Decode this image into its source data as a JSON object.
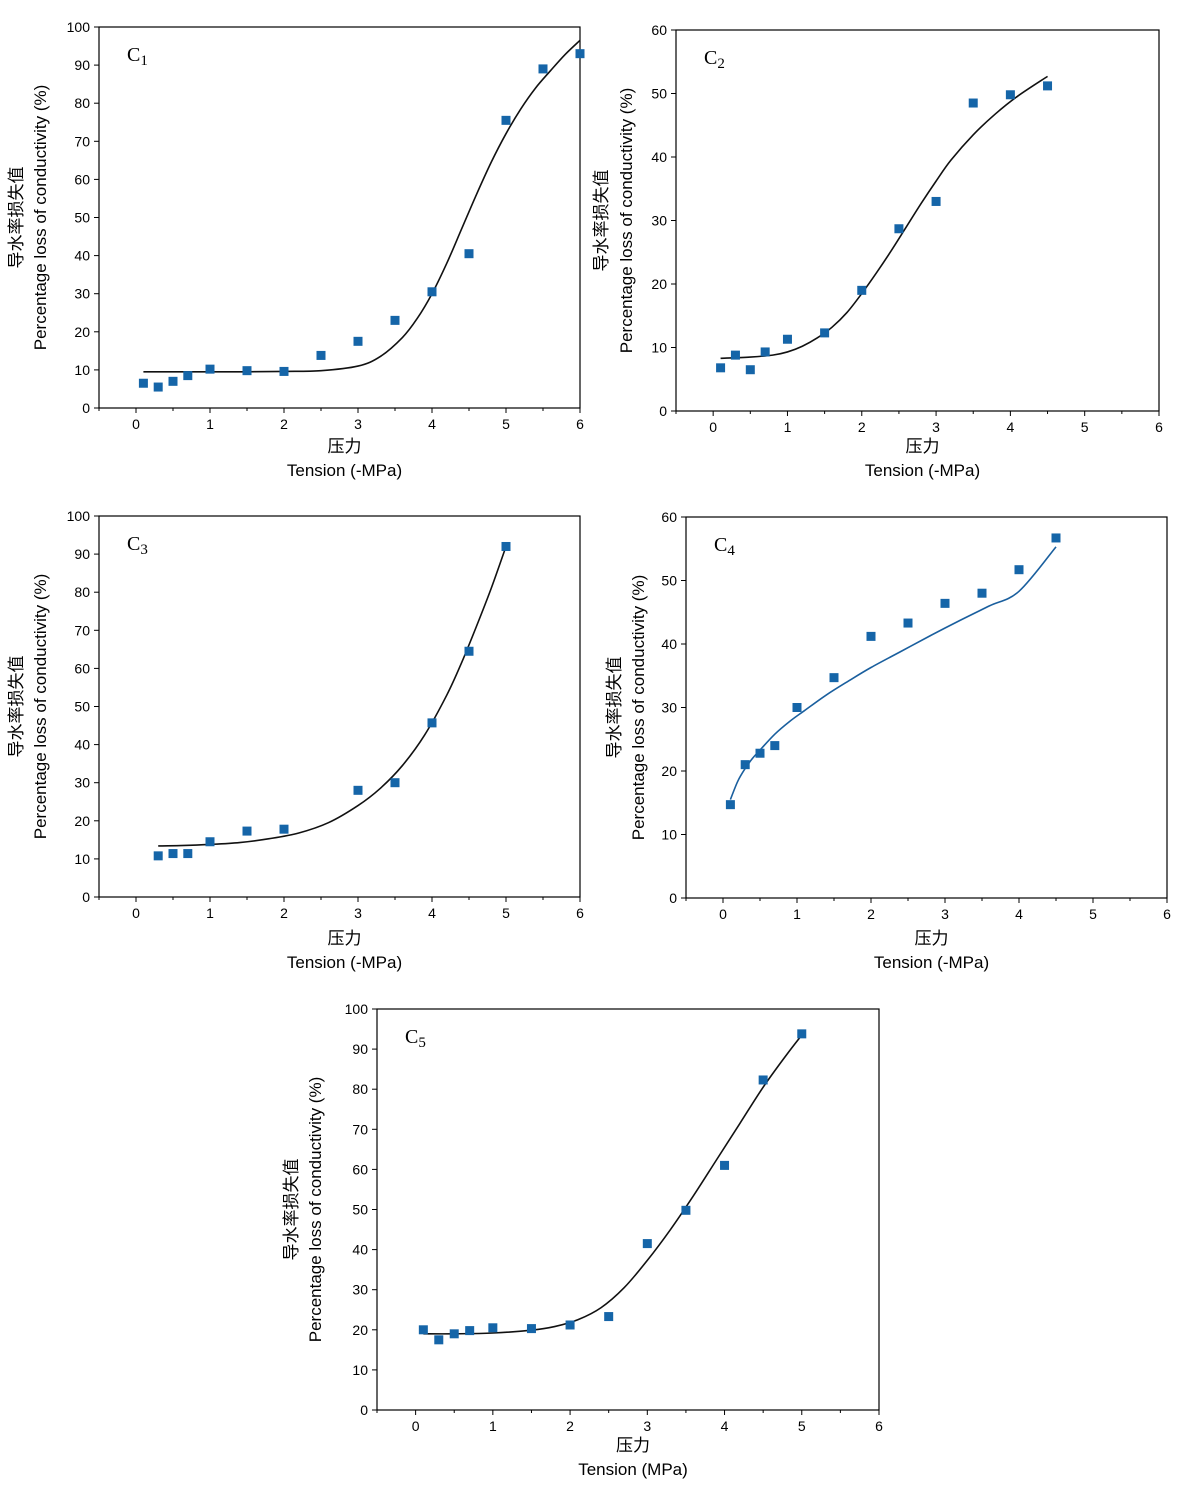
{
  "colors": {
    "marker": "#1565a8",
    "fit_black": "#111111",
    "fit_blue": "#1a5f9e",
    "axis": "#000000"
  },
  "chart_data": [
    {
      "type": "scatter",
      "panel_label": "C",
      "panel_sub": "1",
      "ylabel_cn": "导水率损失值",
      "ylabel_en": "Percentage loss of conductivity (%)",
      "xlabel_cn": "压力",
      "xlabel_en": "Tension (-MPa)",
      "xlim": [
        -0.5,
        6
      ],
      "ylim": [
        0,
        100
      ],
      "xticks": [
        0,
        1,
        2,
        3,
        4,
        5,
        6
      ],
      "yticks": [
        0,
        10,
        20,
        30,
        40,
        50,
        60,
        70,
        80,
        90,
        100
      ],
      "points": {
        "x": [
          0.1,
          0.3,
          0.5,
          0.7,
          1.0,
          1.5,
          2.0,
          2.5,
          3.0,
          3.5,
          4.0,
          4.5,
          5.0,
          5.5,
          6.0
        ],
        "y": [
          6.5,
          5.5,
          7.0,
          8.5,
          10.2,
          9.8,
          9.6,
          13.8,
          17.5,
          23.0,
          30.5,
          40.5,
          75.5,
          89.0,
          93.0
        ]
      },
      "fit": {
        "x": [
          0.1,
          0.5,
          1.0,
          1.5,
          2.0,
          2.5,
          3.0,
          3.3,
          3.6,
          3.8,
          4.0,
          4.2,
          4.4,
          4.6,
          4.8,
          5.0,
          5.2,
          5.4,
          5.6,
          5.8,
          6.0
        ],
        "y": [
          9.5,
          9.5,
          9.5,
          9.5,
          9.6,
          9.8,
          11.0,
          13.5,
          18.5,
          23.5,
          30.0,
          38.0,
          47.0,
          56.0,
          64.5,
          72.0,
          78.5,
          84.0,
          88.5,
          92.8,
          96.5
        ]
      },
      "fit_color": "fit_black"
    },
    {
      "type": "scatter",
      "panel_label": "C",
      "panel_sub": "2",
      "ylabel_cn": "导水率损失值",
      "ylabel_en": "Percentage loss of conductivity (%)",
      "xlabel_cn": "压力",
      "xlabel_en": "Tension (-MPa)",
      "xlim": [
        -0.5,
        6
      ],
      "ylim": [
        0,
        60
      ],
      "xticks": [
        0,
        1,
        2,
        3,
        4,
        5,
        6
      ],
      "yticks": [
        0,
        10,
        20,
        30,
        40,
        50,
        60
      ],
      "points": {
        "x": [
          0.1,
          0.3,
          0.5,
          0.7,
          1.0,
          1.5,
          2.0,
          2.5,
          3.0,
          3.5,
          4.0,
          4.5
        ],
        "y": [
          6.8,
          8.8,
          6.5,
          9.3,
          11.3,
          12.3,
          19.0,
          28.7,
          33.0,
          48.5,
          49.8,
          51.2
        ]
      },
      "fit": {
        "x": [
          0.1,
          0.5,
          0.8,
          1.0,
          1.2,
          1.4,
          1.6,
          1.8,
          2.0,
          2.2,
          2.4,
          2.6,
          2.8,
          3.0,
          3.2,
          3.5,
          3.8,
          4.1,
          4.5
        ],
        "y": [
          8.3,
          8.5,
          8.8,
          9.3,
          10.2,
          11.5,
          13.2,
          15.5,
          18.5,
          21.8,
          25.3,
          29.0,
          32.7,
          36.2,
          39.5,
          43.5,
          46.8,
          49.6,
          52.7
        ]
      },
      "fit_color": "fit_black"
    },
    {
      "type": "scatter",
      "panel_label": "C",
      "panel_sub": "3",
      "ylabel_cn": "导水率损失值",
      "ylabel_en": "Percentage loss of conductivity (%)",
      "xlabel_cn": "压力",
      "xlabel_en": "Tension (-MPa)",
      "xlim": [
        -0.5,
        6
      ],
      "ylim": [
        0,
        100
      ],
      "xticks": [
        0,
        1,
        2,
        3,
        4,
        5,
        6
      ],
      "yticks": [
        0,
        10,
        20,
        30,
        40,
        50,
        60,
        70,
        80,
        90,
        100
      ],
      "points": {
        "x": [
          0.3,
          0.5,
          0.7,
          1.0,
          1.5,
          2.0,
          3.0,
          3.5,
          4.0,
          4.5,
          5.0
        ],
        "y": [
          10.8,
          11.4,
          11.4,
          14.5,
          17.3,
          17.8,
          28.0,
          30.0,
          45.7,
          64.5,
          92.0
        ]
      },
      "fit": {
        "x": [
          0.3,
          0.6,
          1.0,
          1.4,
          1.8,
          2.2,
          2.6,
          3.0,
          3.3,
          3.6,
          3.9,
          4.2,
          4.4,
          4.6,
          4.8,
          5.0
        ],
        "y": [
          13.4,
          13.5,
          13.8,
          14.3,
          15.3,
          16.8,
          19.5,
          24.0,
          28.5,
          34.5,
          42.5,
          53.0,
          61.5,
          71.0,
          81.0,
          92.0
        ]
      },
      "fit_color": "fit_black"
    },
    {
      "type": "scatter",
      "panel_label": "C",
      "panel_sub": "4",
      "ylabel_cn": "导水率损失值",
      "ylabel_en": "Percentage loss of conductivity (%)",
      "xlabel_cn": "压力",
      "xlabel_en": "Tension (-MPa)",
      "xlim": [
        -0.5,
        6
      ],
      "ylim": [
        0,
        60
      ],
      "xticks": [
        0,
        1,
        2,
        3,
        4,
        5,
        6
      ],
      "yticks": [
        0,
        10,
        20,
        30,
        40,
        50,
        60
      ],
      "points": {
        "x": [
          0.1,
          0.3,
          0.5,
          0.7,
          1.0,
          1.5,
          2.0,
          2.5,
          3.0,
          3.5,
          4.0,
          4.5
        ],
        "y": [
          14.7,
          21.0,
          22.8,
          24.0,
          30.0,
          34.7,
          41.2,
          43.3,
          46.4,
          48.0,
          51.7,
          56.7
        ]
      },
      "fit": {
        "x": [
          0.1,
          0.2,
          0.3,
          0.4,
          0.5,
          0.7,
          0.9,
          1.1,
          1.4,
          1.7,
          2.0,
          2.4,
          2.8,
          3.2,
          3.6,
          4.0,
          4.5
        ],
        "y": [
          15.5,
          18.4,
          20.4,
          22.0,
          23.3,
          25.8,
          27.8,
          29.5,
          32.0,
          34.2,
          36.3,
          38.8,
          41.3,
          43.7,
          46.0,
          48.3,
          55.3
        ]
      },
      "fit_color": "fit_blue"
    },
    {
      "type": "scatter",
      "panel_label": "C",
      "panel_sub": "5",
      "ylabel_cn": "导水率损失值",
      "ylabel_en": "Percentage loss of conductivity (%)",
      "xlabel_cn": "压力",
      "xlabel_en": "Tension (MPa)",
      "xlim": [
        -0.5,
        6
      ],
      "ylim": [
        0,
        100
      ],
      "xticks": [
        0,
        1,
        2,
        3,
        4,
        5,
        6
      ],
      "yticks": [
        0,
        10,
        20,
        30,
        40,
        50,
        60,
        70,
        80,
        90,
        100
      ],
      "points": {
        "x": [
          0.1,
          0.3,
          0.5,
          0.7,
          1.0,
          1.5,
          2.0,
          2.5,
          3.0,
          3.5,
          4.0,
          4.5,
          5.0
        ],
        "y": [
          20.0,
          17.5,
          19.0,
          19.8,
          20.5,
          20.3,
          21.2,
          23.3,
          41.5,
          49.8,
          61.0,
          82.3,
          93.8
        ]
      },
      "fit": {
        "x": [
          0.1,
          0.5,
          1.0,
          1.5,
          1.8,
          2.1,
          2.4,
          2.7,
          3.0,
          3.3,
          3.6,
          3.9,
          4.2,
          4.5,
          4.8,
          5.0
        ],
        "y": [
          19.0,
          19.0,
          19.2,
          19.9,
          20.8,
          22.5,
          25.5,
          30.5,
          37.3,
          45.0,
          53.5,
          62.5,
          71.5,
          80.5,
          88.5,
          93.5
        ]
      },
      "fit_color": "fit_black"
    }
  ]
}
